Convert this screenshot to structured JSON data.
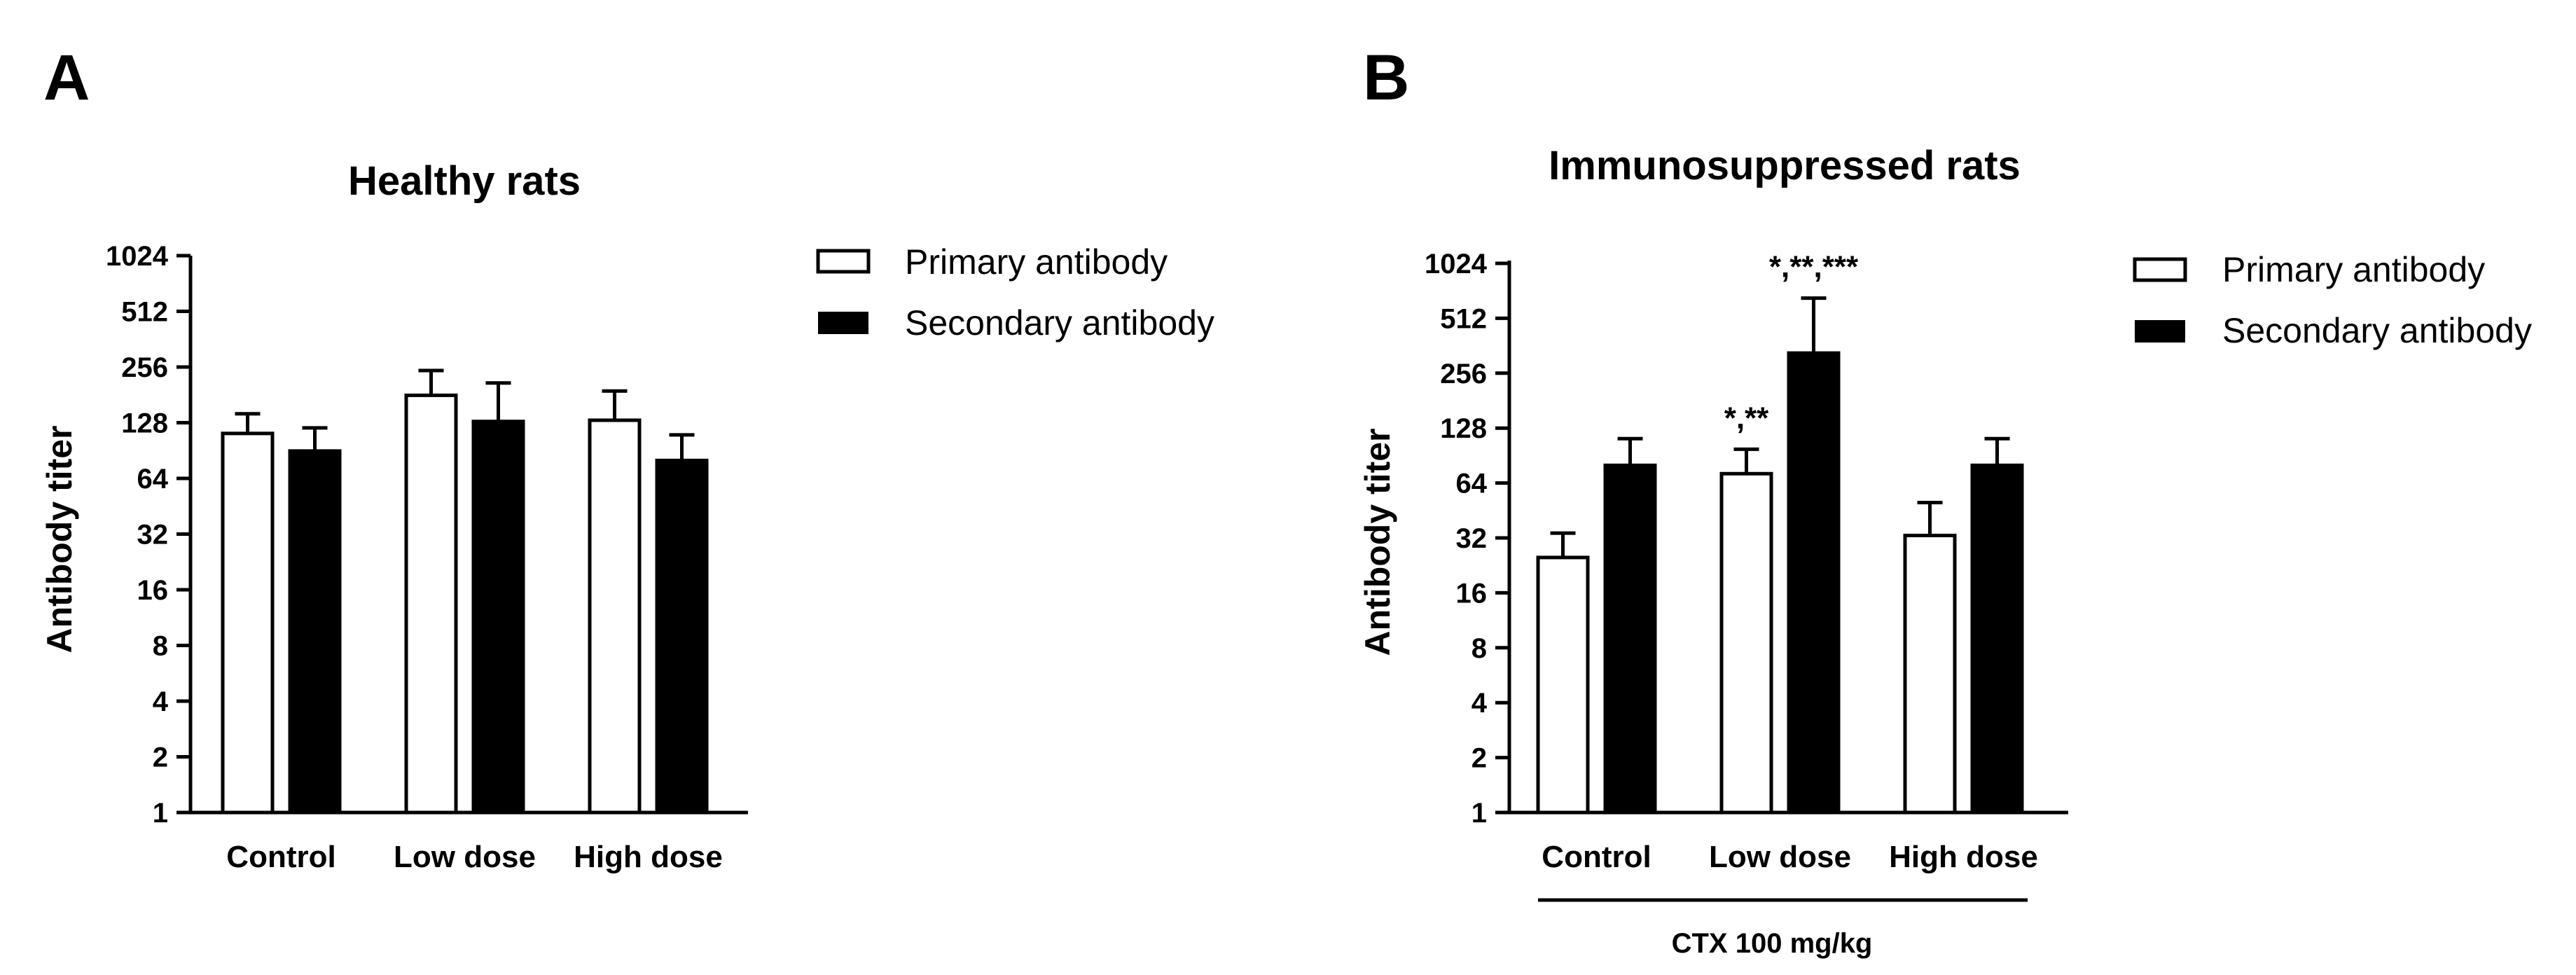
{
  "chart_data": [
    {
      "panel": "A",
      "type": "bar",
      "title": "Healthy rats",
      "ylabel": "Antibody titer",
      "xlabel": "",
      "yscale": "log2",
      "ylim": [
        1,
        1024
      ],
      "yticks": [
        "1",
        "2",
        "4",
        "8",
        "16",
        "32",
        "64",
        "128",
        "256",
        "512",
        "1024"
      ],
      "categories": [
        "Control",
        "Low dose",
        "High dose"
      ],
      "series": [
        {
          "name": "Primary antibody",
          "fill": "#ffffff",
          "values": [
            112,
            180,
            132
          ],
          "errors": [
            143,
            245,
            190
          ]
        },
        {
          "name": "Secondary antibody",
          "fill": "#000000",
          "values": [
            90,
            130,
            80
          ],
          "errors": [
            120,
            210,
            110
          ]
        }
      ],
      "legend": "right",
      "annotations": []
    },
    {
      "panel": "B",
      "type": "bar",
      "title": "Immunosuppressed rats",
      "ylabel": "Antibody titer",
      "xlabel": "",
      "yscale": "log2",
      "ylim": [
        1,
        1024
      ],
      "yticks": [
        "1",
        "2",
        "4",
        "8",
        "16",
        "32",
        "64",
        "128",
        "256",
        "512",
        "1024"
      ],
      "categories": [
        "Control",
        "Low dose",
        "High dose"
      ],
      "group_label": "CTX 100 mg/kg",
      "series": [
        {
          "name": "Primary antibody",
          "fill": "#ffffff",
          "values": [
            25,
            72,
            33
          ],
          "errors": [
            34,
            98,
            50
          ]
        },
        {
          "name": "Secondary antibody",
          "fill": "#000000",
          "values": [
            80,
            330,
            80
          ],
          "errors": [
            112,
            660,
            112
          ]
        }
      ],
      "legend": "right",
      "annotations": [
        {
          "text": "*,**",
          "category": "Low dose",
          "series": "Primary antibody"
        },
        {
          "text": "*,**,***",
          "category": "Low dose",
          "series": "Secondary antibody"
        }
      ]
    }
  ]
}
